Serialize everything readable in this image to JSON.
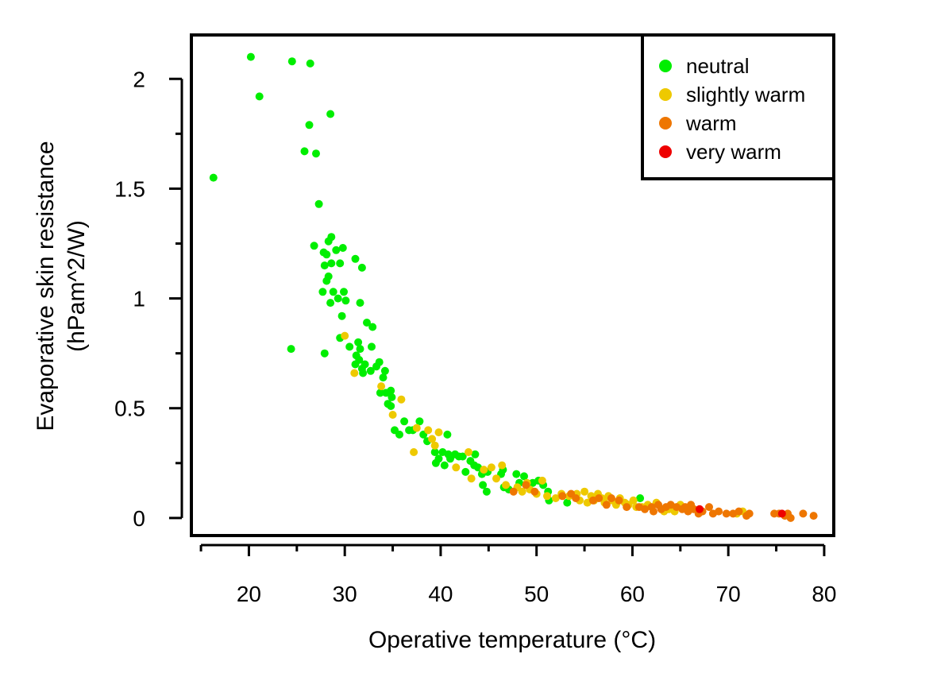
{
  "chart_data": {
    "type": "scatter",
    "title": "",
    "xlabel": "Operative temperature (°C)",
    "ylabel_line1": "Evaporative skin resistance",
    "ylabel_line2": "(hPam^2/W)",
    "xlim": [
      14,
      81
    ],
    "ylim": [
      -0.08,
      2.2
    ],
    "x_ticks": [
      20,
      30,
      40,
      50,
      60,
      70,
      80
    ],
    "x_tick_labels": [
      "20",
      "30",
      "40",
      "50",
      "60",
      "70",
      "80"
    ],
    "x_minor_ticks": [
      15,
      25,
      35,
      45,
      55,
      65,
      75
    ],
    "y_ticks": [
      0,
      0.5,
      1,
      1.5,
      2
    ],
    "y_tick_labels": [
      "0",
      "0.5",
      "1",
      "1.5",
      "2"
    ],
    "y_minor_ticks": [
      0.25,
      0.75,
      1.25,
      1.75
    ],
    "grid": false,
    "legend_position": "top-right",
    "series": [
      {
        "name": "neutral",
        "color": "#00ee00",
        "points": [
          [
            16.3,
            1.55
          ],
          [
            20.2,
            2.1
          ],
          [
            21.1,
            1.92
          ],
          [
            24.5,
            2.08
          ],
          [
            26.4,
            2.07
          ],
          [
            26.3,
            1.79
          ],
          [
            28.5,
            1.84
          ],
          [
            25.8,
            1.67
          ],
          [
            27.0,
            1.66
          ],
          [
            27.3,
            1.43
          ],
          [
            24.4,
            0.77
          ],
          [
            27.9,
            0.75
          ],
          [
            26.8,
            1.24
          ],
          [
            28.3,
            1.26
          ],
          [
            28.6,
            1.28
          ],
          [
            27.8,
            1.21
          ],
          [
            28.1,
            1.2
          ],
          [
            29.1,
            1.22
          ],
          [
            29.8,
            1.23
          ],
          [
            27.9,
            1.15
          ],
          [
            28.6,
            1.16
          ],
          [
            29.5,
            1.16
          ],
          [
            28.3,
            1.1
          ],
          [
            28.1,
            1.08
          ],
          [
            27.7,
            1.03
          ],
          [
            28.8,
            1.03
          ],
          [
            29.3,
            1.0
          ],
          [
            29.9,
            1.03
          ],
          [
            30.1,
            0.99
          ],
          [
            28.5,
            0.98
          ],
          [
            29.7,
            0.92
          ],
          [
            31.1,
            1.18
          ],
          [
            31.8,
            1.14
          ],
          [
            31.6,
            0.98
          ],
          [
            29.5,
            0.82
          ],
          [
            30.5,
            0.78
          ],
          [
            31.4,
            0.8
          ],
          [
            31.6,
            0.77
          ],
          [
            32.3,
            0.89
          ],
          [
            32.9,
            0.87
          ],
          [
            32.8,
            0.78
          ],
          [
            31.2,
            0.74
          ],
          [
            31.1,
            0.7
          ],
          [
            31.5,
            0.72
          ],
          [
            32.1,
            0.7
          ],
          [
            31.8,
            0.68
          ],
          [
            31.9,
            0.66
          ],
          [
            32.7,
            0.67
          ],
          [
            33.3,
            0.69
          ],
          [
            33.6,
            0.71
          ],
          [
            34.2,
            0.67
          ],
          [
            34.0,
            0.64
          ],
          [
            33.7,
            0.57
          ],
          [
            34.3,
            0.57
          ],
          [
            34.8,
            0.58
          ],
          [
            34.9,
            0.55
          ],
          [
            34.5,
            0.52
          ],
          [
            34.8,
            0.51
          ],
          [
            35.2,
            0.4
          ],
          [
            35.7,
            0.38
          ],
          [
            36.2,
            0.44
          ],
          [
            36.7,
            0.4
          ],
          [
            37.1,
            0.4
          ],
          [
            37.8,
            0.44
          ],
          [
            38.2,
            0.38
          ],
          [
            38.6,
            0.35
          ],
          [
            39.4,
            0.3
          ],
          [
            39.8,
            0.27
          ],
          [
            40.2,
            0.3
          ],
          [
            40.8,
            0.29
          ],
          [
            40.7,
            0.38
          ],
          [
            41.0,
            0.27
          ],
          [
            41.5,
            0.29
          ],
          [
            41.9,
            0.28
          ],
          [
            42.3,
            0.28
          ],
          [
            39.5,
            0.25
          ],
          [
            40.4,
            0.24
          ],
          [
            42.6,
            0.21
          ],
          [
            43.1,
            0.26
          ],
          [
            43.5,
            0.24
          ],
          [
            43.9,
            0.23
          ],
          [
            43.6,
            0.29
          ],
          [
            44.3,
            0.2
          ],
          [
            44.9,
            0.21
          ],
          [
            44.8,
            0.12
          ],
          [
            44.4,
            0.15
          ],
          [
            46.3,
            0.2
          ],
          [
            46.6,
            0.14
          ],
          [
            46.5,
            0.22
          ],
          [
            47.1,
            0.13
          ],
          [
            47.9,
            0.2
          ],
          [
            48.7,
            0.19
          ],
          [
            49.6,
            0.16
          ],
          [
            48.2,
            0.16
          ],
          [
            50.2,
            0.17
          ],
          [
            50.7,
            0.15
          ],
          [
            51.2,
            0.12
          ],
          [
            51.3,
            0.08
          ],
          [
            53.2,
            0.07
          ],
          [
            54.0,
            0.1
          ],
          [
            60.8,
            0.09
          ]
        ]
      },
      {
        "name": "slightly warm",
        "color": "#eec900",
        "points": [
          [
            30.0,
            0.83
          ],
          [
            31.0,
            0.66
          ],
          [
            33.8,
            0.6
          ],
          [
            35.0,
            0.47
          ],
          [
            35.9,
            0.54
          ],
          [
            37.2,
            0.3
          ],
          [
            37.5,
            0.41
          ],
          [
            38.7,
            0.4
          ],
          [
            39.1,
            0.36
          ],
          [
            39.8,
            0.39
          ],
          [
            39.4,
            0.33
          ],
          [
            41.6,
            0.23
          ],
          [
            42.9,
            0.3
          ],
          [
            43.2,
            0.18
          ],
          [
            44.5,
            0.22
          ],
          [
            45.3,
            0.23
          ],
          [
            45.8,
            0.18
          ],
          [
            46.4,
            0.24
          ],
          [
            46.8,
            0.15
          ],
          [
            48.0,
            0.14
          ],
          [
            48.5,
            0.12
          ],
          [
            49.0,
            0.16
          ],
          [
            49.3,
            0.13
          ],
          [
            50.0,
            0.11
          ],
          [
            50.6,
            0.17
          ],
          [
            51.1,
            0.1
          ],
          [
            52.0,
            0.09
          ],
          [
            52.6,
            0.11
          ],
          [
            53.4,
            0.1
          ],
          [
            54.2,
            0.11
          ],
          [
            54.5,
            0.08
          ],
          [
            55.0,
            0.12
          ],
          [
            55.3,
            0.07
          ],
          [
            55.7,
            0.1
          ],
          [
            56.0,
            0.08
          ],
          [
            56.4,
            0.11
          ],
          [
            56.8,
            0.09
          ],
          [
            57.1,
            0.07
          ],
          [
            57.5,
            0.1
          ],
          [
            57.9,
            0.08
          ],
          [
            58.3,
            0.06
          ],
          [
            58.7,
            0.09
          ],
          [
            59.2,
            0.07
          ],
          [
            59.6,
            0.06
          ],
          [
            60.1,
            0.08
          ],
          [
            60.4,
            0.05
          ],
          [
            61.0,
            0.05
          ],
          [
            61.6,
            0.06
          ],
          [
            62.5,
            0.07
          ],
          [
            63.3,
            0.03
          ],
          [
            63.8,
            0.04
          ],
          [
            64.4,
            0.03
          ],
          [
            65.0,
            0.06
          ],
          [
            70.9,
            0.02
          ],
          [
            71.5,
            0.03
          ]
        ]
      },
      {
        "name": "warm",
        "color": "#ee7600",
        "points": [
          [
            47.6,
            0.12
          ],
          [
            48.9,
            0.15
          ],
          [
            49.8,
            0.12
          ],
          [
            52.7,
            0.1
          ],
          [
            53.6,
            0.11
          ],
          [
            54.1,
            0.09
          ],
          [
            55.9,
            0.08
          ],
          [
            56.5,
            0.09
          ],
          [
            57.3,
            0.06
          ],
          [
            57.8,
            0.09
          ],
          [
            58.6,
            0.08
          ],
          [
            59.4,
            0.05
          ],
          [
            60.7,
            0.05
          ],
          [
            61.3,
            0.04
          ],
          [
            62.0,
            0.05
          ],
          [
            62.2,
            0.03
          ],
          [
            62.7,
            0.06
          ],
          [
            63.0,
            0.04
          ],
          [
            63.5,
            0.05
          ],
          [
            64.0,
            0.06
          ],
          [
            64.6,
            0.05
          ],
          [
            65.2,
            0.04
          ],
          [
            65.5,
            0.05
          ],
          [
            65.8,
            0.03
          ],
          [
            66.1,
            0.06
          ],
          [
            66.4,
            0.04
          ],
          [
            66.9,
            0.02
          ],
          [
            67.3,
            0.03
          ],
          [
            68.0,
            0.05
          ],
          [
            68.4,
            0.02
          ],
          [
            69.0,
            0.03
          ],
          [
            69.8,
            0.02
          ],
          [
            70.5,
            0.02
          ],
          [
            71.1,
            0.03
          ],
          [
            71.9,
            0.01
          ],
          [
            72.2,
            0.02
          ],
          [
            74.8,
            0.02
          ],
          [
            75.3,
            0.02
          ],
          [
            75.9,
            0.01
          ],
          [
            76.2,
            0.02
          ],
          [
            76.5,
            0.0
          ],
          [
            77.8,
            0.02
          ],
          [
            78.9,
            0.01
          ]
        ]
      },
      {
        "name": "very warm",
        "color": "#ee0000",
        "points": [
          [
            67.0,
            0.04
          ],
          [
            75.6,
            0.02
          ]
        ]
      }
    ]
  }
}
